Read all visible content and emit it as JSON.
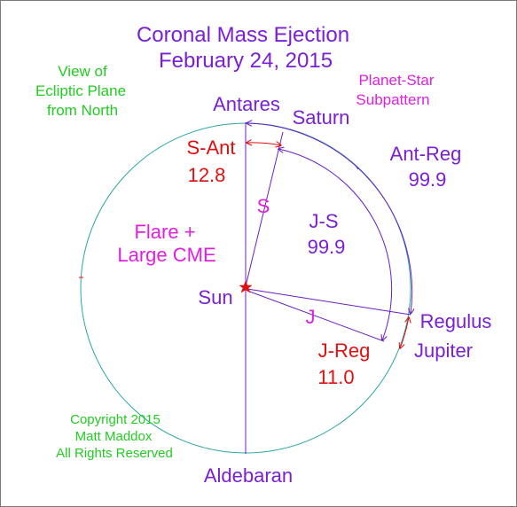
{
  "title": {
    "line1": "Coronal Mass Ejection",
    "line2": "February 24, 2015"
  },
  "view_note": [
    "View of",
    "Ecliptic Plane",
    "from North"
  ],
  "pattern_note": [
    "Planet-Star",
    "Subpattern"
  ],
  "bodies": {
    "antares": "Antares",
    "saturn": "Saturn",
    "regulus": "Regulus",
    "jupiter": "Jupiter",
    "aldebaran": "Aldebaran",
    "sun": "Sun"
  },
  "ray_labels": {
    "saturn": "S",
    "jupiter": "J"
  },
  "angles": {
    "s_ant": {
      "label": "S-Ant",
      "value": "12.8"
    },
    "ant_reg": {
      "label": "Ant-Reg",
      "value": "99.9"
    },
    "j_s": {
      "label": "J-S",
      "value": "99.9"
    },
    "j_reg": {
      "label": "J-Reg",
      "value": "11.0"
    }
  },
  "event": [
    "Flare +",
    "Large CME"
  ],
  "copyright": [
    "Copyright 2015",
    "Matt Maddox",
    "All Rights Reserved"
  ],
  "colors": {
    "title": "#7b1fd6",
    "label_purple": "#7b1fd6",
    "label_magenta": "#e020e0",
    "label_red": "#e01010",
    "label_green": "#22cc22",
    "circle": "#2aa6a6",
    "lines": "#6a1fc4",
    "arrows": "#e01010",
    "sun_star": "#e01010"
  },
  "icons": {
    "sun": "red-star-icon"
  }
}
